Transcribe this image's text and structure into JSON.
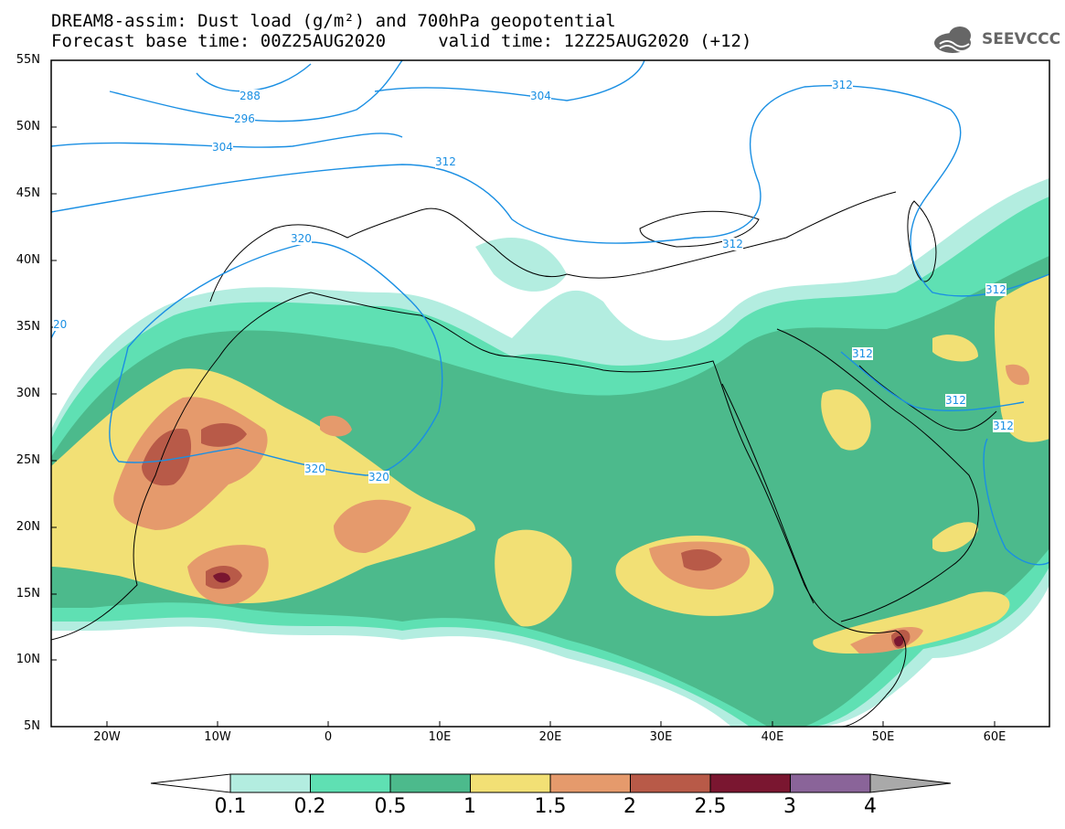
{
  "header": {
    "title_line1": "DREAM8-assim: Dust load (g/m²) and 700hPa geopotential",
    "title_line2": "Forecast base time: 00Z25AUG2020     valid time: 12Z25AUG2020 (+12)",
    "logo_text": "SEEVCCC"
  },
  "map": {
    "lat_labels": [
      "55N",
      "50N",
      "45N",
      "40N",
      "35N",
      "30N",
      "25N",
      "20N",
      "15N",
      "10N",
      "5N"
    ],
    "lon_labels": [
      "20W",
      "10W",
      "0",
      "10E",
      "20E",
      "30E",
      "40E",
      "50E",
      "60E"
    ],
    "contour_labels": [
      "288",
      "296",
      "304",
      "304",
      "312",
      "312",
      "312",
      "320",
      "320",
      "320",
      "20",
      "312",
      "312",
      "312",
      "312"
    ]
  },
  "colorbar": {
    "labels": [
      "0.1",
      "0.2",
      "0.5",
      "1",
      "1.5",
      "2",
      "2.5",
      "3",
      "4"
    ],
    "colors": [
      "#b3ede0",
      "#5fe0b3",
      "#4cba8c",
      "#f2e075",
      "#e59a6c",
      "#b85a48",
      "#7a1630",
      "#8a6499",
      "#a9a9a9"
    ]
  },
  "legend_colors": {
    "low": "#b3ede0",
    "light": "#5fe0b3",
    "mid": "#4cba8c",
    "yellow": "#f2e075",
    "orange": "#e59a6c",
    "brown": "#b85a48",
    "maroon": "#7a1630",
    "contour": "#1a8fe3"
  }
}
